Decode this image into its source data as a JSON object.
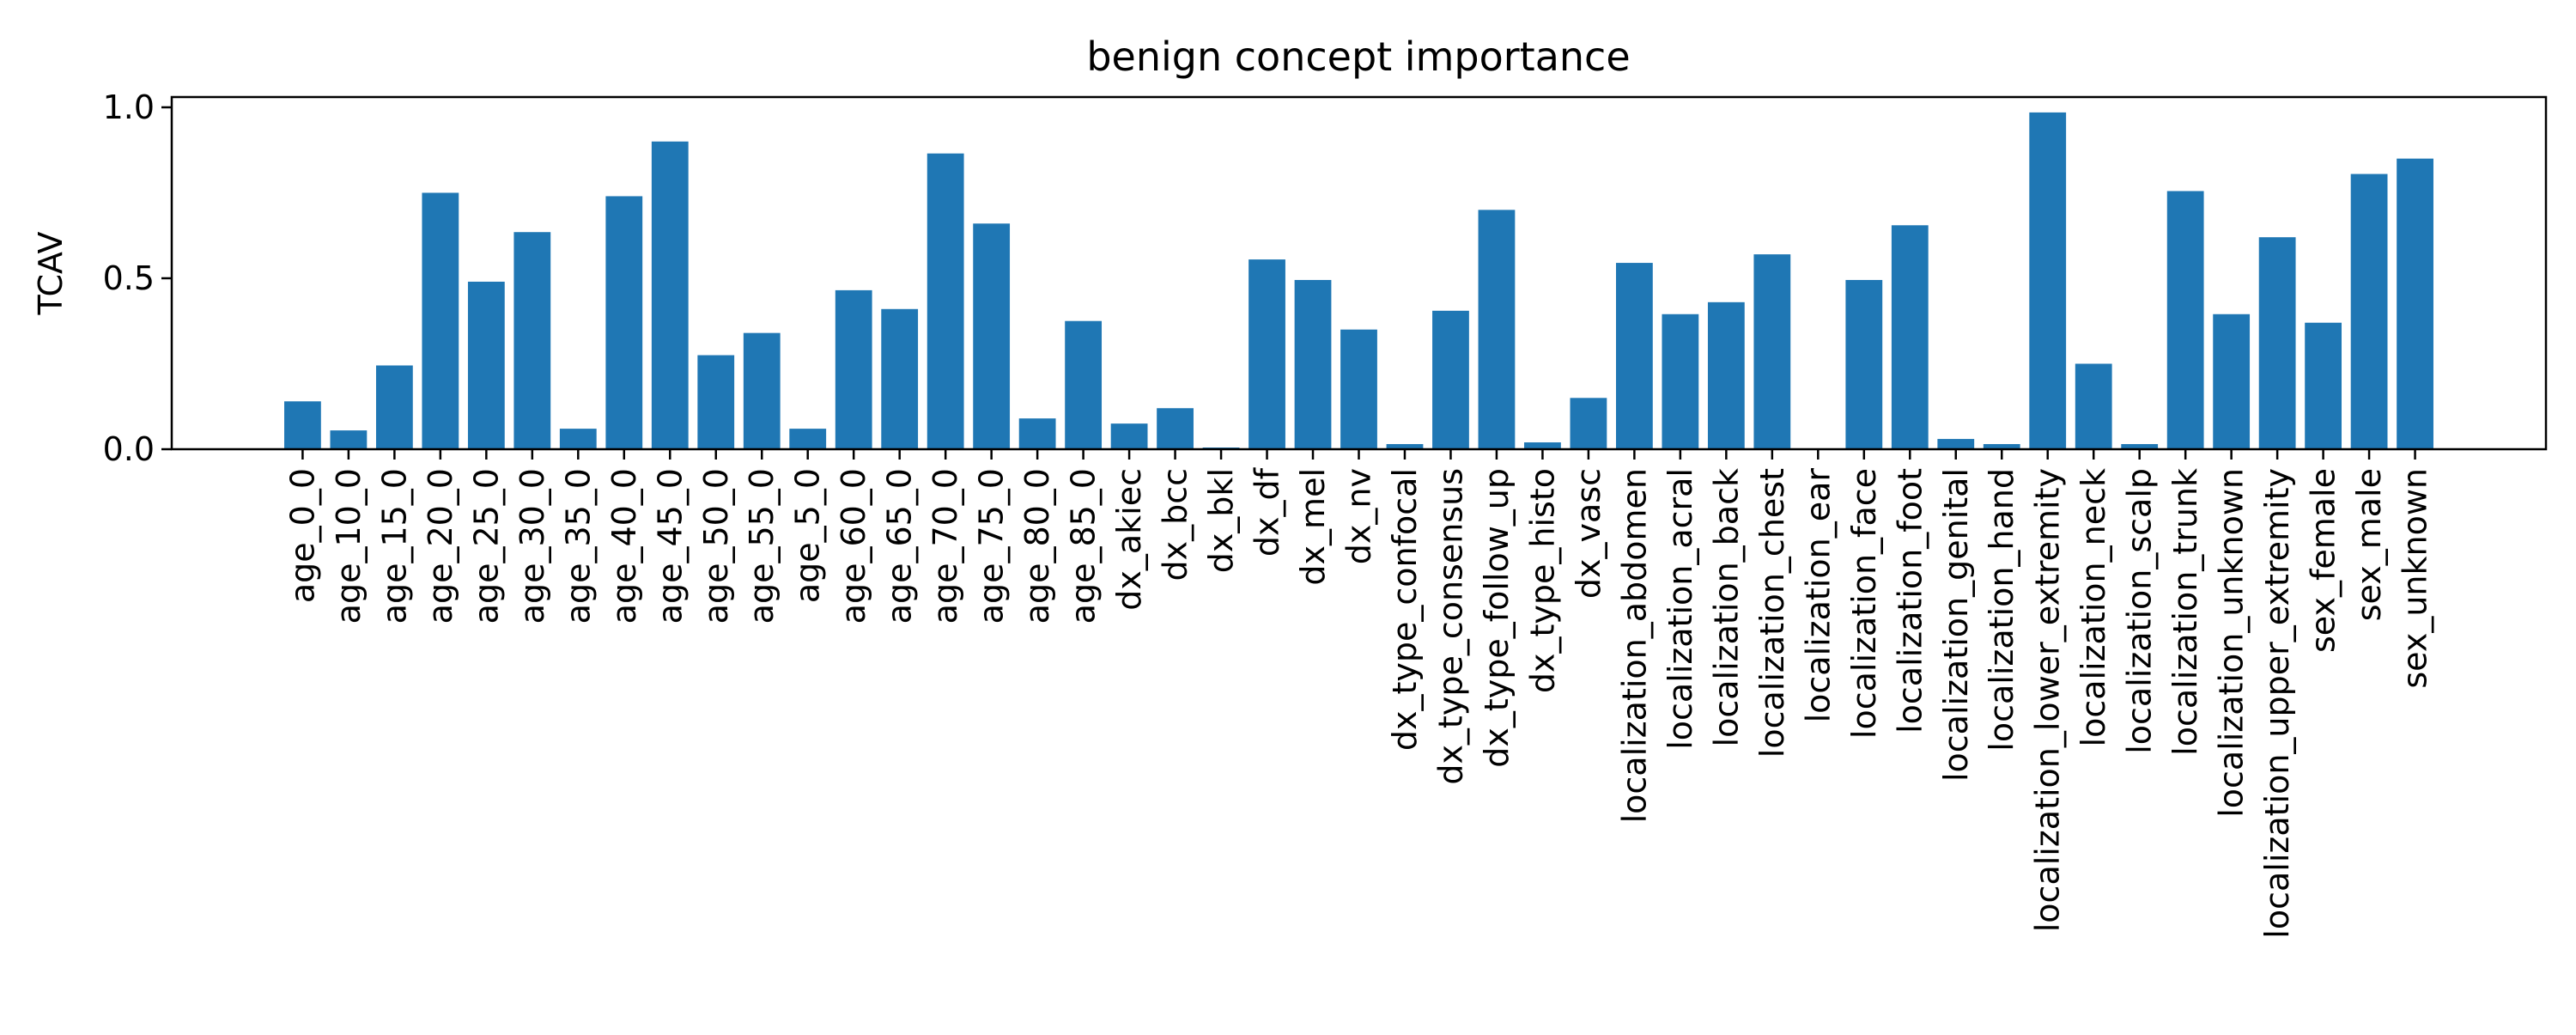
{
  "chart_data": {
    "type": "bar",
    "title": "benign concept importance",
    "xlabel": "",
    "ylabel": "TCAV",
    "ylim": [
      0,
      1.03
    ],
    "yticks": [
      0.0,
      0.5,
      1.0
    ],
    "ytick_labels": [
      "0.0",
      "0.5",
      "1.0"
    ],
    "grid": false,
    "bar_color": "#1f77b4",
    "categories": [
      "age_0_0",
      "age_10_0",
      "age_15_0",
      "age_20_0",
      "age_25_0",
      "age_30_0",
      "age_35_0",
      "age_40_0",
      "age_45_0",
      "age_50_0",
      "age_55_0",
      "age_5_0",
      "age_60_0",
      "age_65_0",
      "age_70_0",
      "age_75_0",
      "age_80_0",
      "age_85_0",
      "dx_akiec",
      "dx_bcc",
      "dx_bkl",
      "dx_df",
      "dx_mel",
      "dx_nv",
      "dx_type_confocal",
      "dx_type_consensus",
      "dx_type_follow_up",
      "dx_type_histo",
      "dx_vasc",
      "localization_abdomen",
      "localization_acral",
      "localization_back",
      "localization_chest",
      "localization_ear",
      "localization_face",
      "localization_foot",
      "localization_genital",
      "localization_hand",
      "localization_lower_extremity",
      "localization_neck",
      "localization_scalp",
      "localization_trunk",
      "localization_unknown",
      "localization_upper_extremity",
      "sex_female",
      "sex_male",
      "sex_unknown"
    ],
    "values": [
      0.14,
      0.055,
      0.245,
      0.75,
      0.49,
      0.635,
      0.06,
      0.74,
      0.9,
      0.275,
      0.34,
      0.06,
      0.465,
      0.41,
      0.865,
      0.66,
      0.09,
      0.375,
      0.075,
      0.12,
      0.005,
      0.555,
      0.495,
      0.35,
      0.015,
      0.405,
      0.7,
      0.02,
      0.15,
      0.545,
      0.395,
      0.43,
      0.57,
      0.0,
      0.495,
      0.655,
      0.03,
      0.015,
      0.985,
      0.25,
      0.015,
      0.755,
      0.395,
      0.62,
      0.37,
      0.805,
      0.85
    ]
  }
}
